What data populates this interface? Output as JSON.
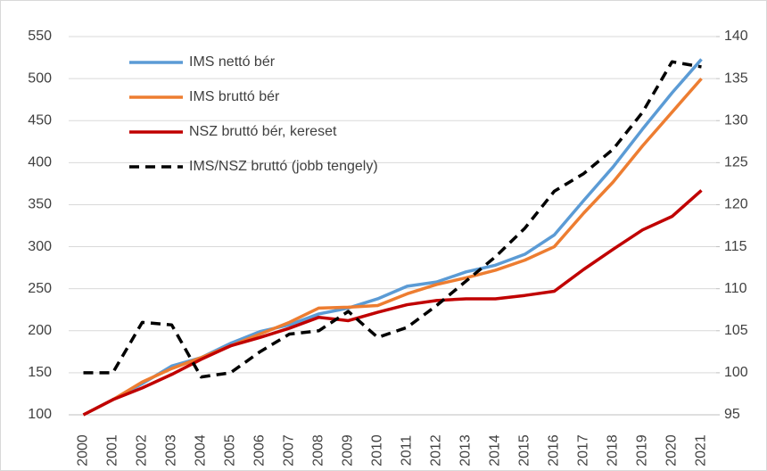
{
  "chart_data": {
    "type": "line",
    "categories": [
      "2000",
      "2001",
      "2002",
      "2003",
      "2004",
      "2005",
      "2006",
      "2007",
      "2008",
      "2009",
      "2010",
      "2011",
      "2012",
      "2013",
      "2014",
      "2015",
      "2016",
      "2017",
      "2018",
      "2019",
      "2020",
      "2021"
    ],
    "series": [
      {
        "name": "IMS nettó bér",
        "color": "#5b9bd5",
        "values": [
          100,
          118,
          137,
          158,
          168,
          185,
          199,
          207,
          220,
          227,
          238,
          253,
          258,
          270,
          278,
          291,
          314,
          355,
          395,
          440,
          483,
          523
        ]
      },
      {
        "name": "IMS bruttó bér",
        "color": "#ed7d31",
        "values": [
          100,
          118,
          139,
          155,
          168,
          182,
          196,
          210,
          227,
          228,
          230,
          244,
          255,
          263,
          272,
          284,
          300,
          340,
          377,
          420,
          460,
          500
        ]
      },
      {
        "name": "NSZ bruttó bér, kereset",
        "color": "#c00000",
        "values": [
          100,
          118,
          132,
          148,
          166,
          182,
          192,
          203,
          216,
          212,
          222,
          231,
          236,
          238,
          238,
          242,
          247,
          273,
          297,
          320,
          336,
          367
        ]
      },
      {
        "name": "IMS/NSZ bruttó (jobb tengely)",
        "color": "#000000",
        "linestyle": "dashed",
        "axis": "y2",
        "values": [
          100,
          100,
          106,
          105.7,
          99.5,
          100,
          102.5,
          104.6,
          105,
          107.3,
          104.2,
          105.4,
          108,
          110.9,
          113.8,
          117.2,
          121.6,
          123.7,
          126.6,
          131,
          137,
          136.4
        ]
      }
    ],
    "ylim": [
      100,
      550
    ],
    "yticks": [
      100,
      150,
      200,
      250,
      300,
      350,
      400,
      450,
      500,
      550
    ],
    "y2lim": [
      95,
      140
    ],
    "y2ticks": [
      95,
      100,
      105,
      110,
      115,
      120,
      125,
      130,
      135,
      140
    ],
    "grid": true,
    "legend": "upper left"
  }
}
